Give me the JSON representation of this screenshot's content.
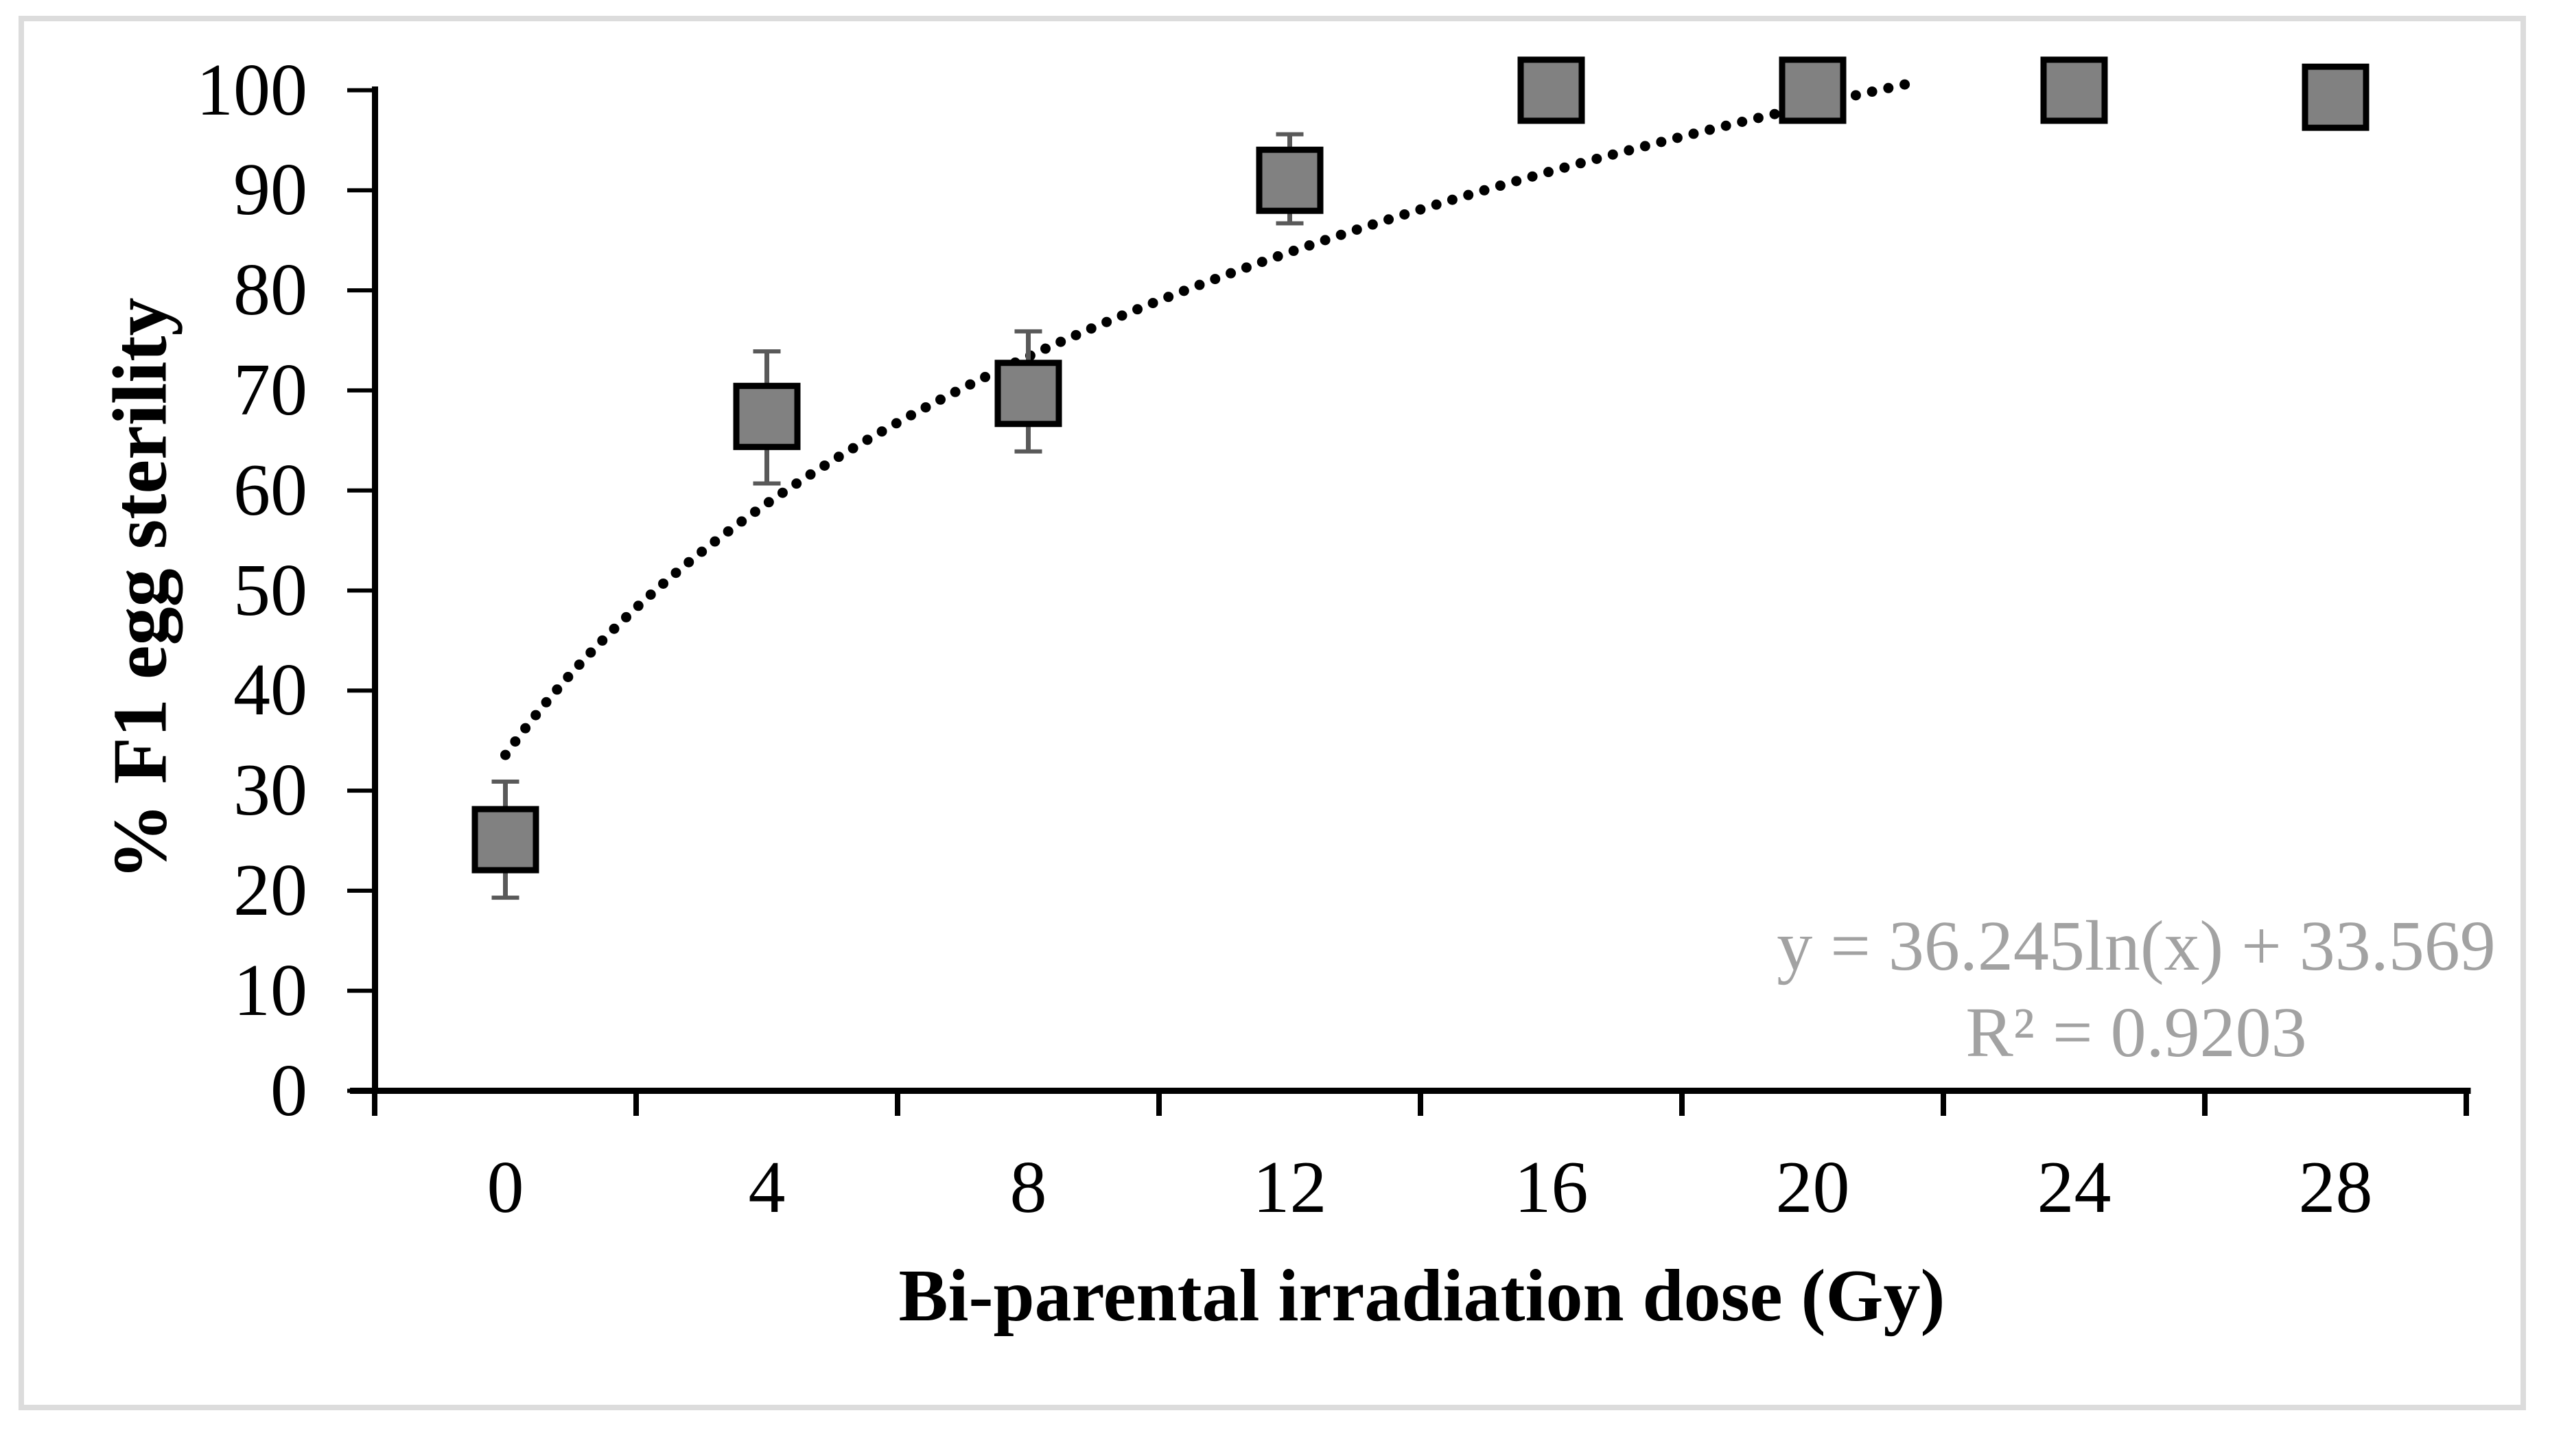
{
  "figure": {
    "background": "#ffffff",
    "frame_color": "#dcdcdc"
  },
  "chart_data": {
    "type": "scatter",
    "title": "",
    "xlabel": "Bi-parental irradiation dose (Gy)",
    "ylabel": "% F1 egg sterility",
    "categories": [
      0,
      4,
      8,
      12,
      16,
      20,
      24,
      28
    ],
    "x_tick_labels": [
      "0",
      "4",
      "8",
      "12",
      "16",
      "20",
      "24",
      "28"
    ],
    "y_tick_labels": [
      "0",
      "10",
      "20",
      "30",
      "40",
      "50",
      "60",
      "70",
      "80",
      "90",
      "100"
    ],
    "y_ticks": [
      0,
      10,
      20,
      30,
      40,
      50,
      60,
      70,
      80,
      90,
      100
    ],
    "ylim": [
      0,
      100
    ],
    "grid": false,
    "legend": "none",
    "series": [
      {
        "name": "% F1 egg sterility",
        "values": [
          25.1,
          67.4,
          69.7,
          91.0,
          100,
          100,
          100,
          99.3
        ],
        "error_up": [
          5.8,
          6.5,
          6.2,
          4.6,
          0,
          0,
          0,
          0
        ],
        "error_down": [
          5.8,
          6.7,
          5.8,
          4.3,
          0,
          0,
          0,
          0
        ]
      }
    ],
    "trendline": {
      "type": "logarithmic",
      "a": 36.245,
      "b": 33.569,
      "fitted_on": "category index 1-8",
      "equation": "y = 36.245ln(x) + 33.569",
      "r_squared_label": "R² = 0.9203",
      "style": "dotted",
      "color": "#000000"
    },
    "marker": {
      "shape": "square",
      "fill": "#818181",
      "border": "#000000"
    },
    "colors": {
      "axis": "#000000",
      "tick_labels": "#000000",
      "error_bars": "#595959",
      "equation_text": "#a2a2a2"
    }
  }
}
